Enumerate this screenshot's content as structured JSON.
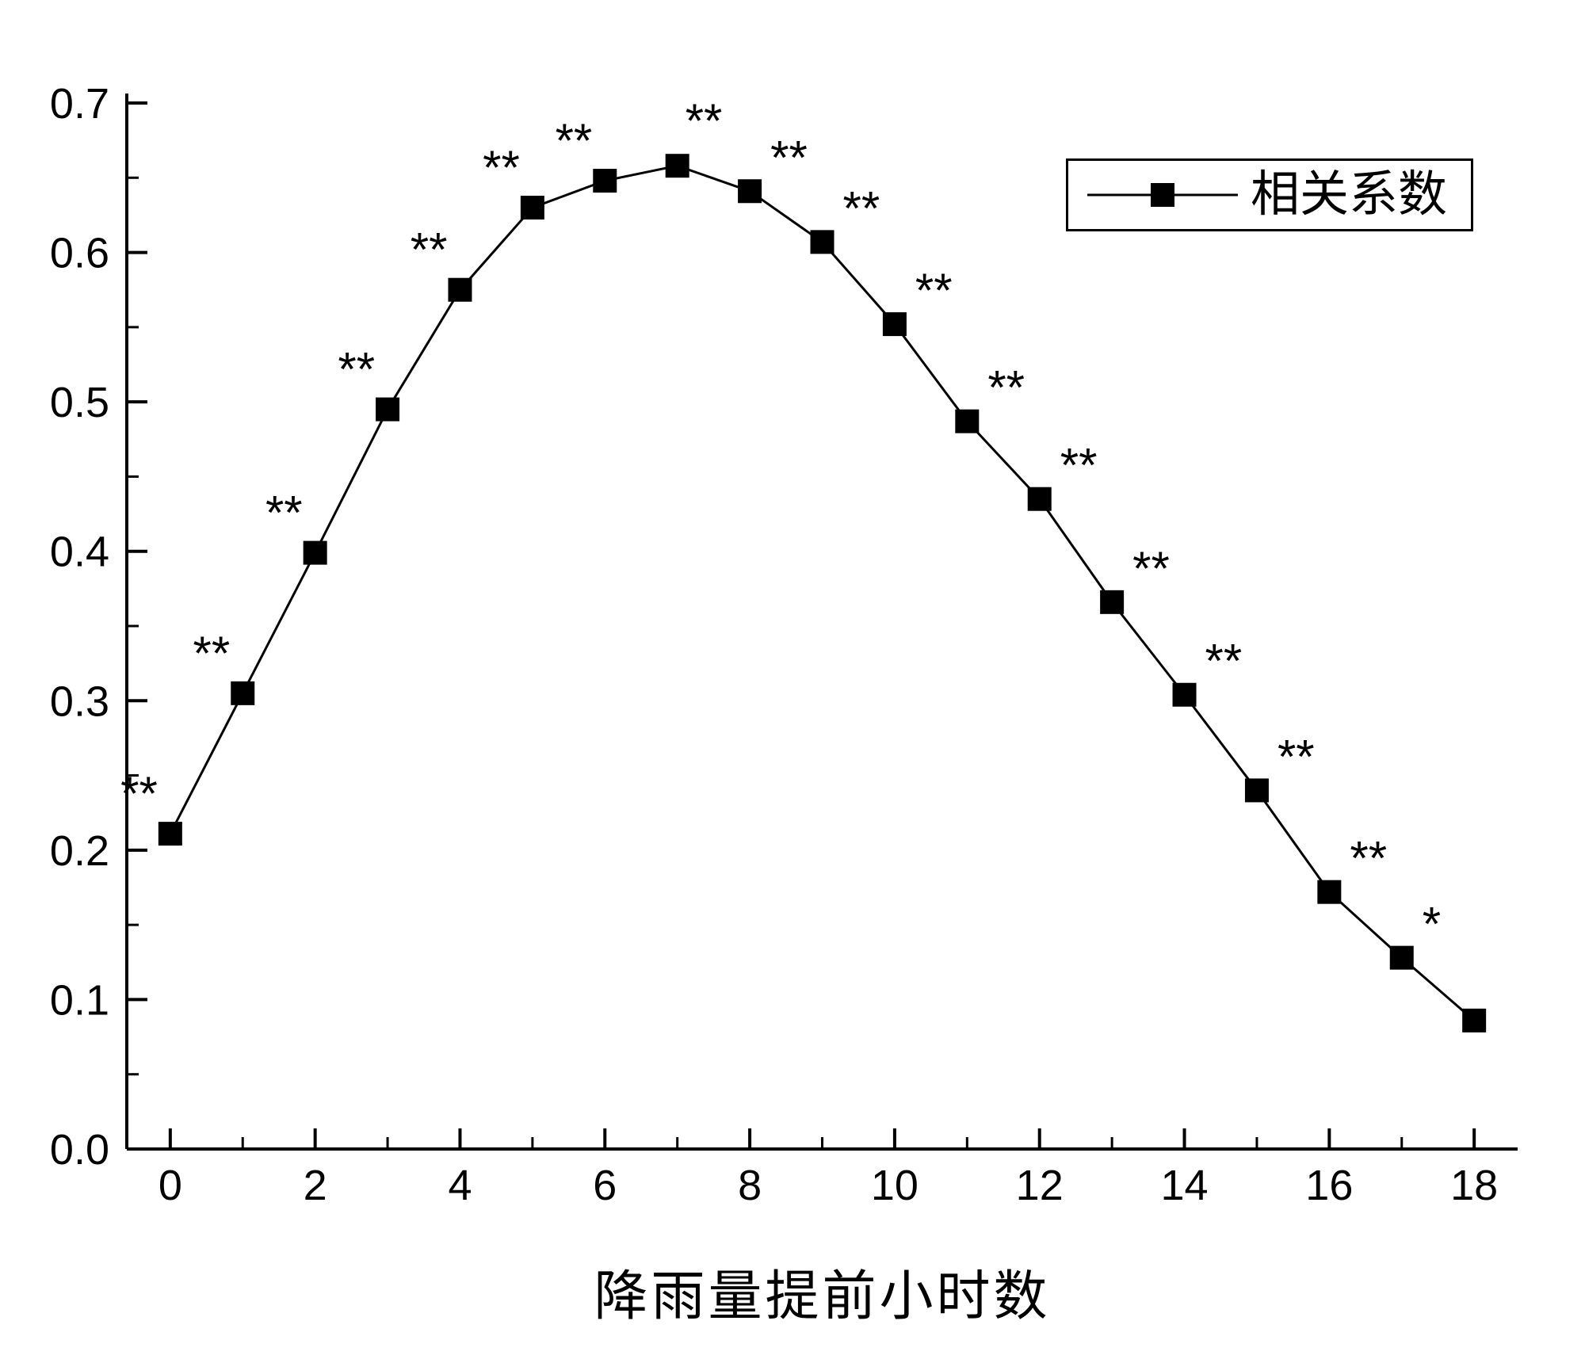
{
  "chart_data": {
    "type": "line",
    "title": "",
    "xlabel": "降雨量提前小时数",
    "ylabel": "",
    "legend": {
      "label": "相关系数",
      "position": "top-right"
    },
    "x": [
      0,
      1,
      2,
      3,
      4,
      5,
      6,
      7,
      8,
      9,
      10,
      11,
      12,
      13,
      14,
      15,
      16,
      17,
      18
    ],
    "series": [
      {
        "name": "相关系数",
        "values": [
          0.211,
          0.305,
          0.399,
          0.495,
          0.575,
          0.63,
          0.648,
          0.658,
          0.641,
          0.607,
          0.552,
          0.487,
          0.435,
          0.366,
          0.304,
          0.24,
          0.172,
          0.128,
          0.086
        ]
      }
    ],
    "point_labels": [
      "**",
      "**",
      "**",
      "**",
      "**",
      "**",
      "**",
      "**",
      "**",
      "**",
      "**",
      "**",
      "**",
      "**",
      "**",
      "**",
      "**",
      "*",
      ""
    ],
    "xlim": [
      -0.6,
      18.6
    ],
    "ylim": [
      0,
      0.7
    ],
    "xticks_major": [
      0,
      2,
      4,
      6,
      8,
      10,
      12,
      14,
      16,
      18
    ],
    "xtick_labels": [
      "0",
      "2",
      "4",
      "6",
      "8",
      "10",
      "12",
      "14",
      "16",
      "18"
    ],
    "xticks_minor": [
      1,
      3,
      5,
      7,
      9,
      11,
      13,
      15,
      17
    ],
    "yticks_major": [
      0.0,
      0.1,
      0.2,
      0.3,
      0.4,
      0.5,
      0.6,
      0.7
    ],
    "ytick_labels": [
      "0.0",
      "0.1",
      "0.2",
      "0.3",
      "0.4",
      "0.5",
      "0.6",
      "0.7"
    ],
    "yticks_minor": [
      0.05,
      0.15,
      0.25,
      0.35,
      0.45,
      0.55,
      0.65
    ],
    "grid": false,
    "marker": "square",
    "colors": {
      "line": "#000000",
      "marker": "#000000",
      "text": "#000000",
      "background": "#ffffff"
    }
  }
}
